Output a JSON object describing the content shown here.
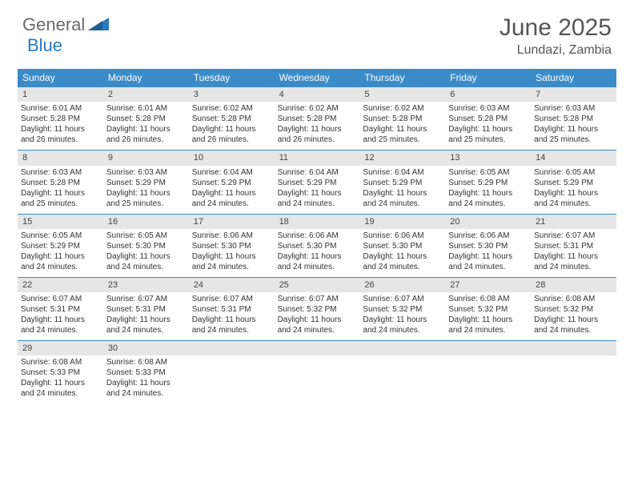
{
  "logo": {
    "word1": "General",
    "word2": "Blue"
  },
  "title": "June 2025",
  "location": "Lundazi, Zambia",
  "colors": {
    "header_bar": "#3b8bc9",
    "day_number_bg": "#e6e6e6",
    "logo_gray": "#6b6b6b",
    "logo_blue": "#2b7bbf",
    "text": "#333333",
    "title_text": "#555555"
  },
  "layout": {
    "columns": 7,
    "font_family": "Arial",
    "day_fontsize": 10,
    "weekday_fontsize": 12,
    "title_fontsize": 30
  },
  "weekdays": [
    "Sunday",
    "Monday",
    "Tuesday",
    "Wednesday",
    "Thursday",
    "Friday",
    "Saturday"
  ],
  "weeks": [
    [
      {
        "n": "1",
        "sr": "Sunrise: 6:01 AM",
        "ss": "Sunset: 5:28 PM",
        "d1": "Daylight: 11 hours",
        "d2": "and 26 minutes."
      },
      {
        "n": "2",
        "sr": "Sunrise: 6:01 AM",
        "ss": "Sunset: 5:28 PM",
        "d1": "Daylight: 11 hours",
        "d2": "and 26 minutes."
      },
      {
        "n": "3",
        "sr": "Sunrise: 6:02 AM",
        "ss": "Sunset: 5:28 PM",
        "d1": "Daylight: 11 hours",
        "d2": "and 26 minutes."
      },
      {
        "n": "4",
        "sr": "Sunrise: 6:02 AM",
        "ss": "Sunset: 5:28 PM",
        "d1": "Daylight: 11 hours",
        "d2": "and 26 minutes."
      },
      {
        "n": "5",
        "sr": "Sunrise: 6:02 AM",
        "ss": "Sunset: 5:28 PM",
        "d1": "Daylight: 11 hours",
        "d2": "and 25 minutes."
      },
      {
        "n": "6",
        "sr": "Sunrise: 6:03 AM",
        "ss": "Sunset: 5:28 PM",
        "d1": "Daylight: 11 hours",
        "d2": "and 25 minutes."
      },
      {
        "n": "7",
        "sr": "Sunrise: 6:03 AM",
        "ss": "Sunset: 5:28 PM",
        "d1": "Daylight: 11 hours",
        "d2": "and 25 minutes."
      }
    ],
    [
      {
        "n": "8",
        "sr": "Sunrise: 6:03 AM",
        "ss": "Sunset: 5:28 PM",
        "d1": "Daylight: 11 hours",
        "d2": "and 25 minutes."
      },
      {
        "n": "9",
        "sr": "Sunrise: 6:03 AM",
        "ss": "Sunset: 5:29 PM",
        "d1": "Daylight: 11 hours",
        "d2": "and 25 minutes."
      },
      {
        "n": "10",
        "sr": "Sunrise: 6:04 AM",
        "ss": "Sunset: 5:29 PM",
        "d1": "Daylight: 11 hours",
        "d2": "and 24 minutes."
      },
      {
        "n": "11",
        "sr": "Sunrise: 6:04 AM",
        "ss": "Sunset: 5:29 PM",
        "d1": "Daylight: 11 hours",
        "d2": "and 24 minutes."
      },
      {
        "n": "12",
        "sr": "Sunrise: 6:04 AM",
        "ss": "Sunset: 5:29 PM",
        "d1": "Daylight: 11 hours",
        "d2": "and 24 minutes."
      },
      {
        "n": "13",
        "sr": "Sunrise: 6:05 AM",
        "ss": "Sunset: 5:29 PM",
        "d1": "Daylight: 11 hours",
        "d2": "and 24 minutes."
      },
      {
        "n": "14",
        "sr": "Sunrise: 6:05 AM",
        "ss": "Sunset: 5:29 PM",
        "d1": "Daylight: 11 hours",
        "d2": "and 24 minutes."
      }
    ],
    [
      {
        "n": "15",
        "sr": "Sunrise: 6:05 AM",
        "ss": "Sunset: 5:29 PM",
        "d1": "Daylight: 11 hours",
        "d2": "and 24 minutes."
      },
      {
        "n": "16",
        "sr": "Sunrise: 6:05 AM",
        "ss": "Sunset: 5:30 PM",
        "d1": "Daylight: 11 hours",
        "d2": "and 24 minutes."
      },
      {
        "n": "17",
        "sr": "Sunrise: 6:06 AM",
        "ss": "Sunset: 5:30 PM",
        "d1": "Daylight: 11 hours",
        "d2": "and 24 minutes."
      },
      {
        "n": "18",
        "sr": "Sunrise: 6:06 AM",
        "ss": "Sunset: 5:30 PM",
        "d1": "Daylight: 11 hours",
        "d2": "and 24 minutes."
      },
      {
        "n": "19",
        "sr": "Sunrise: 6:06 AM",
        "ss": "Sunset: 5:30 PM",
        "d1": "Daylight: 11 hours",
        "d2": "and 24 minutes."
      },
      {
        "n": "20",
        "sr": "Sunrise: 6:06 AM",
        "ss": "Sunset: 5:30 PM",
        "d1": "Daylight: 11 hours",
        "d2": "and 24 minutes."
      },
      {
        "n": "21",
        "sr": "Sunrise: 6:07 AM",
        "ss": "Sunset: 5:31 PM",
        "d1": "Daylight: 11 hours",
        "d2": "and 24 minutes."
      }
    ],
    [
      {
        "n": "22",
        "sr": "Sunrise: 6:07 AM",
        "ss": "Sunset: 5:31 PM",
        "d1": "Daylight: 11 hours",
        "d2": "and 24 minutes."
      },
      {
        "n": "23",
        "sr": "Sunrise: 6:07 AM",
        "ss": "Sunset: 5:31 PM",
        "d1": "Daylight: 11 hours",
        "d2": "and 24 minutes."
      },
      {
        "n": "24",
        "sr": "Sunrise: 6:07 AM",
        "ss": "Sunset: 5:31 PM",
        "d1": "Daylight: 11 hours",
        "d2": "and 24 minutes."
      },
      {
        "n": "25",
        "sr": "Sunrise: 6:07 AM",
        "ss": "Sunset: 5:32 PM",
        "d1": "Daylight: 11 hours",
        "d2": "and 24 minutes."
      },
      {
        "n": "26",
        "sr": "Sunrise: 6:07 AM",
        "ss": "Sunset: 5:32 PM",
        "d1": "Daylight: 11 hours",
        "d2": "and 24 minutes."
      },
      {
        "n": "27",
        "sr": "Sunrise: 6:08 AM",
        "ss": "Sunset: 5:32 PM",
        "d1": "Daylight: 11 hours",
        "d2": "and 24 minutes."
      },
      {
        "n": "28",
        "sr": "Sunrise: 6:08 AM",
        "ss": "Sunset: 5:32 PM",
        "d1": "Daylight: 11 hours",
        "d2": "and 24 minutes."
      }
    ],
    [
      {
        "n": "29",
        "sr": "Sunrise: 6:08 AM",
        "ss": "Sunset: 5:33 PM",
        "d1": "Daylight: 11 hours",
        "d2": "and 24 minutes."
      },
      {
        "n": "30",
        "sr": "Sunrise: 6:08 AM",
        "ss": "Sunset: 5:33 PM",
        "d1": "Daylight: 11 hours",
        "d2": "and 24 minutes."
      },
      {
        "n": "",
        "sr": "",
        "ss": "",
        "d1": "",
        "d2": ""
      },
      {
        "n": "",
        "sr": "",
        "ss": "",
        "d1": "",
        "d2": ""
      },
      {
        "n": "",
        "sr": "",
        "ss": "",
        "d1": "",
        "d2": ""
      },
      {
        "n": "",
        "sr": "",
        "ss": "",
        "d1": "",
        "d2": ""
      },
      {
        "n": "",
        "sr": "",
        "ss": "",
        "d1": "",
        "d2": ""
      }
    ]
  ]
}
